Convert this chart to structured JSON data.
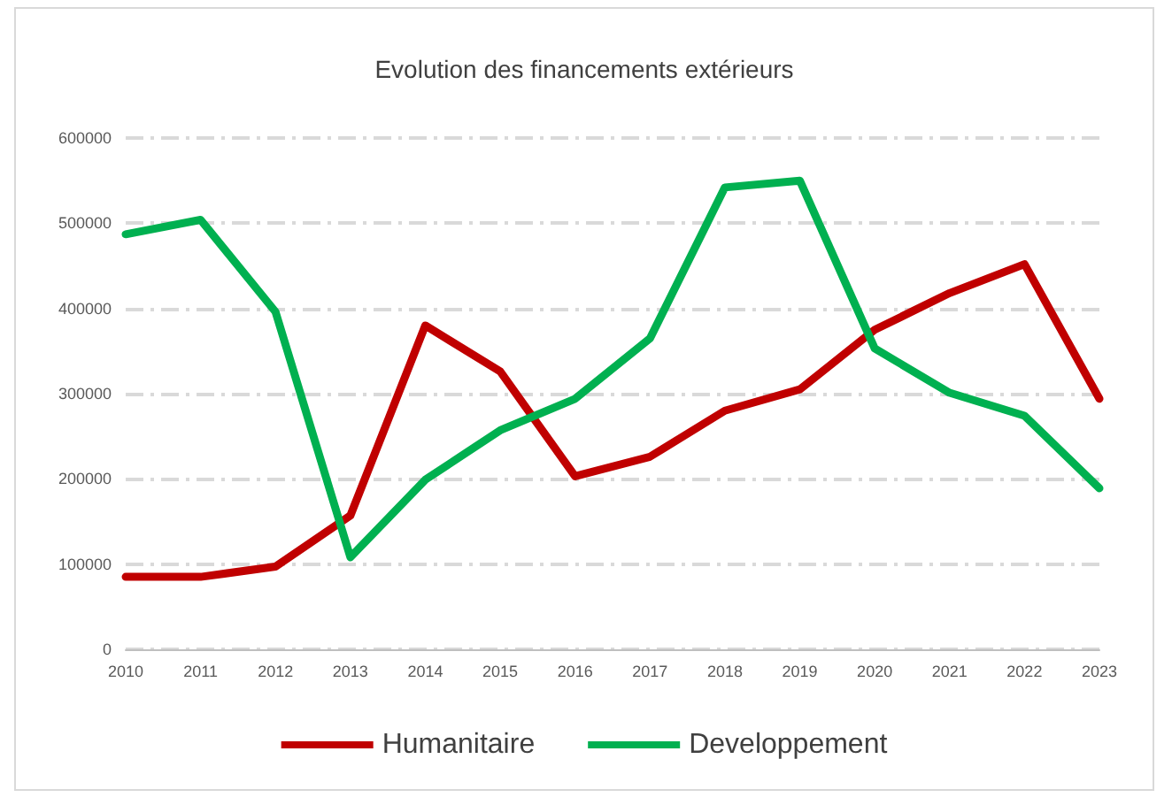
{
  "chart_data": {
    "type": "line",
    "title": "Evolution des financements extérieurs",
    "categories": [
      "2010",
      "2011",
      "2012",
      "2013",
      "2014",
      "2015",
      "2016",
      "2017",
      "2018",
      "2019",
      "2020",
      "2021",
      "2022",
      "2023"
    ],
    "series": [
      {
        "name": "Humanitaire",
        "color": "#c00000",
        "values": [
          85000,
          85000,
          97000,
          157000,
          380000,
          326000,
          203000,
          226000,
          280000,
          305000,
          375000,
          418000,
          452000,
          294000
        ]
      },
      {
        "name": "Developpement",
        "color": "#00b050",
        "values": [
          487000,
          504000,
          396000,
          108000,
          199000,
          257000,
          294000,
          365000,
          542000,
          550000,
          353000,
          301000,
          274000,
          189000
        ]
      }
    ],
    "ylim": [
      0,
      600000
    ],
    "yticks": [
      0,
      100000,
      200000,
      300000,
      400000,
      500000,
      600000
    ],
    "grid": "y",
    "legend": "bottom",
    "marker": "none",
    "line_style": "solid"
  }
}
